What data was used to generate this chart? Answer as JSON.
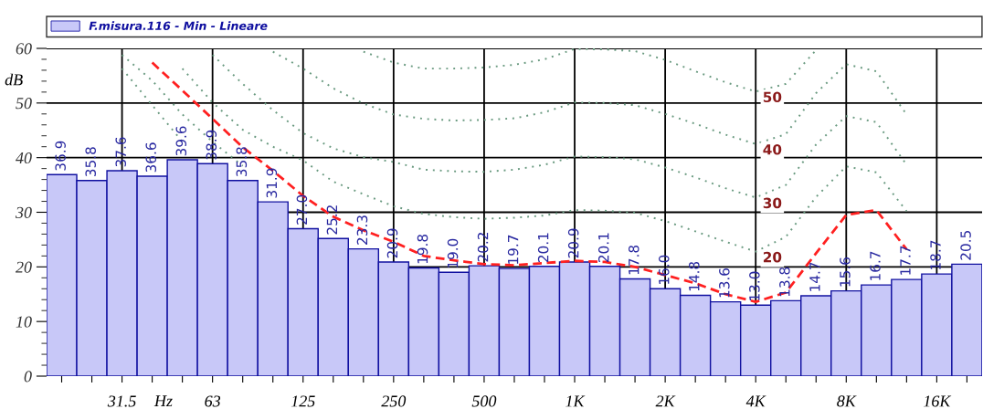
{
  "chart_data": {
    "type": "bar",
    "ylabel": "dB",
    "xlabel": "Hz",
    "categories": [
      null,
      null,
      "31.5",
      null,
      null,
      "63",
      null,
      null,
      "125",
      null,
      null,
      "250",
      null,
      null,
      "500",
      null,
      null,
      "1K",
      null,
      null,
      "2K",
      null,
      null,
      "4K",
      null,
      null,
      "8K",
      null,
      null,
      "16K",
      null
    ],
    "series": [
      {
        "name": "F.misura.116 - Min - Lineare",
        "color": "#c8c8f8",
        "values": [
          36.9,
          35.8,
          37.6,
          36.6,
          39.6,
          38.9,
          35.8,
          31.9,
          27.0,
          25.2,
          23.3,
          20.9,
          19.8,
          19.0,
          20.2,
          19.7,
          20.1,
          20.9,
          20.1,
          17.8,
          16.0,
          14.8,
          13.6,
          13.0,
          13.8,
          14.7,
          15.6,
          16.7,
          17.7,
          18.7,
          20.5
        ],
        "value_labels": [
          "36.9",
          "35.8",
          "37.6",
          "36.6",
          "39.6",
          "38.9",
          "35.8",
          "31.9",
          "27.0",
          "25.2",
          "23.3",
          "20.9",
          "19.8",
          "19.0",
          "20.2",
          "19.7",
          "20.1",
          "20.9",
          "20.1",
          "17.8",
          "16.0",
          "14.8",
          "13.6",
          "13.0",
          "13.8",
          "14.7",
          "15.6",
          "16.7",
          "17.7",
          "18.7",
          "20.5"
        ]
      },
      {
        "type": "line",
        "color": "#ff2020",
        "line_style": "dashed",
        "values": [
          null,
          null,
          null,
          57.4,
          52.3,
          47.1,
          41.9,
          37.6,
          33.0,
          29.2,
          26.7,
          24.6,
          22.0,
          21.2,
          20.5,
          20.3,
          20.7,
          21.1,
          20.9,
          20.0,
          18.5,
          17.0,
          15.0,
          13.6,
          15.3,
          22.5,
          29.5,
          30.4,
          23.2,
          null,
          null
        ]
      },
      {
        "name": "50",
        "type": "line",
        "color": "#6a9a80",
        "line_style": "dotted",
        "values": [
          null,
          null,
          null,
          null,
          null,
          null,
          null,
          null,
          null,
          null,
          59.4,
          57.4,
          56.3,
          56.3,
          56.5,
          57.0,
          58.0,
          59.9,
          59.8,
          59.5,
          57.9,
          55.8,
          53.8,
          52.1,
          53.5,
          59.7,
          null,
          null,
          null,
          null,
          null
        ]
      },
      {
        "name": "40",
        "type": "line",
        "color": "#6a9a80",
        "line_style": "dotted",
        "values": [
          null,
          null,
          null,
          null,
          null,
          null,
          null,
          59.4,
          56.3,
          52.7,
          49.9,
          47.9,
          47.1,
          46.8,
          46.9,
          47.2,
          48.3,
          50.1,
          50.0,
          49.6,
          48.0,
          46.2,
          44.2,
          42.5,
          44.3,
          51.8,
          57.1,
          55.8,
          47.9,
          null,
          null
        ]
      },
      {
        "name": "30",
        "type": "line",
        "color": "#6a9a80",
        "line_style": "dotted",
        "values": [
          null,
          null,
          null,
          null,
          null,
          58.8,
          53.5,
          48.7,
          44.5,
          41.7,
          40.1,
          39.2,
          37.8,
          37.5,
          37.4,
          37.8,
          38.7,
          40.2,
          40.1,
          39.7,
          38.2,
          36.4,
          34.4,
          32.7,
          35.0,
          42.4,
          47.6,
          46.5,
          38.7,
          null,
          null
        ]
      },
      {
        "name": "20",
        "type": "line",
        "color": "#6a9a80",
        "line_style": "dotted",
        "values": [
          null,
          null,
          null,
          null,
          56.3,
          50.1,
          45.1,
          42.0,
          39.5,
          35.6,
          33.3,
          31.1,
          29.7,
          29.1,
          28.8,
          29.0,
          29.4,
          30.4,
          30.3,
          29.9,
          28.4,
          26.5,
          24.6,
          22.8,
          25.5,
          32.8,
          38.4,
          37.3,
          30.2,
          null,
          null
        ]
      },
      {
        "type": "line",
        "color": "#6a9a80",
        "line_style": "dotted",
        "values": [
          null,
          null,
          56.3,
          49.6,
          42.9,
          null,
          null,
          null,
          null,
          null,
          null,
          null,
          null,
          null,
          null,
          null,
          null,
          null,
          null,
          null,
          null,
          null,
          null,
          null,
          null,
          null,
          null,
          null,
          null,
          null,
          null
        ]
      },
      {
        "type": "line",
        "color": "#6a9a80",
        "line_style": "dotted",
        "values": [
          null,
          null,
          58.8,
          54.1,
          47.9,
          42.9,
          38.5,
          null,
          null,
          null,
          null,
          null,
          null,
          null,
          null,
          null,
          null,
          null,
          null,
          null,
          null,
          null,
          null,
          null,
          null,
          null,
          null,
          null,
          null,
          null,
          null
        ]
      }
    ],
    "ylim": [
      0,
      60
    ],
    "yticks": [
      0,
      10,
      20,
      30,
      40,
      50,
      60
    ],
    "grid": true,
    "legend": "top",
    "marker": "none"
  }
}
